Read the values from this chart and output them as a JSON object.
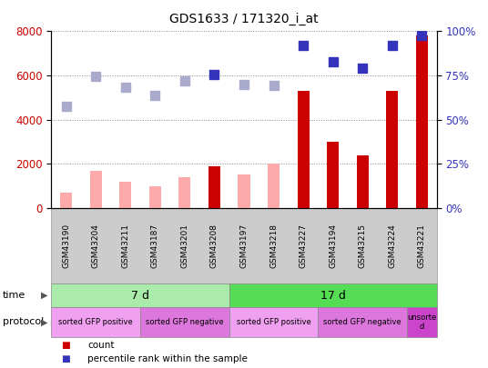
{
  "title": "GDS1633 / 171320_i_at",
  "samples": [
    "GSM43190",
    "GSM43204",
    "GSM43211",
    "GSM43187",
    "GSM43201",
    "GSM43208",
    "GSM43197",
    "GSM43218",
    "GSM43227",
    "GSM43194",
    "GSM43215",
    "GSM43224",
    "GSM43221"
  ],
  "count_values": [
    null,
    null,
    null,
    null,
    null,
    1900,
    null,
    null,
    5300,
    3000,
    2400,
    5300,
    7800
  ],
  "count_absent_values": [
    700,
    1700,
    1200,
    1000,
    1400,
    null,
    1500,
    2000,
    null,
    null,
    null,
    null,
    null
  ],
  "rank_values": [
    null,
    null,
    null,
    null,
    null,
    6050,
    null,
    null,
    7350,
    6600,
    6350,
    7350,
    7800
  ],
  "rank_absent_values": [
    4600,
    5950,
    5450,
    5100,
    5750,
    null,
    5600,
    5550,
    null,
    null,
    null,
    null,
    null
  ],
  "ylim_left": [
    0,
    8000
  ],
  "ylim_right": [
    0,
    100
  ],
  "yticks_left": [
    0,
    2000,
    4000,
    6000,
    8000
  ],
  "yticks_right": [
    0,
    25,
    50,
    75,
    100
  ],
  "time_groups": [
    {
      "label": "7 d",
      "start": 0,
      "end": 6,
      "color": "#aaeaaa"
    },
    {
      "label": "17 d",
      "start": 6,
      "end": 13,
      "color": "#55dd55"
    }
  ],
  "protocol_groups": [
    {
      "label": "sorted GFP positive",
      "start": 0,
      "end": 3,
      "color": "#f0a0f0"
    },
    {
      "label": "sorted GFP negative",
      "start": 3,
      "end": 6,
      "color": "#dd77dd"
    },
    {
      "label": "sorted GFP positive",
      "start": 6,
      "end": 9,
      "color": "#f0a0f0"
    },
    {
      "label": "sorted GFP negative",
      "start": 9,
      "end": 12,
      "color": "#dd77dd"
    },
    {
      "label": "unsorte\nd",
      "start": 12,
      "end": 13,
      "color": "#cc44cc"
    }
  ],
  "count_color": "#cc0000",
  "count_absent_color": "#ffaaaa",
  "rank_color": "#3333bb",
  "rank_absent_color": "#aaaacc",
  "bar_width": 0.4,
  "marker_size": 7,
  "background_color": "#ffffff",
  "plot_bg_color": "#ffffff",
  "grid_color": "#888888",
  "sample_area_color": "#cccccc"
}
